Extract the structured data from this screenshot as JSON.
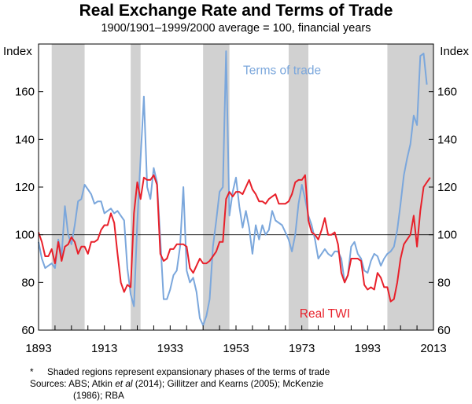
{
  "chart_data": {
    "type": "line",
    "title": "Real Exchange Rate and Terms of Trade",
    "subtitle": "1900/1901–1999/2000 average = 100, financial years",
    "ylabel_left": "Index",
    "ylabel_right": "Index",
    "xlim": [
      1893,
      2013
    ],
    "ylim": [
      60,
      180
    ],
    "x_ticks": [
      1893,
      1913,
      1933,
      1953,
      1973,
      1993,
      2013
    ],
    "y_ticks": [
      60,
      80,
      100,
      120,
      140,
      160
    ],
    "reference_line": 100,
    "shaded_regions": [
      [
        1897,
        1907
      ],
      [
        1921,
        1924
      ],
      [
        1943,
        1951
      ],
      [
        1969,
        1975
      ],
      [
        1999,
        2013
      ]
    ],
    "series": [
      {
        "name": "Terms of trade",
        "color": "#7ba7dc",
        "points": [
          [
            1893,
            97
          ],
          [
            1894,
            90
          ],
          [
            1895,
            86
          ],
          [
            1896,
            87
          ],
          [
            1897,
            88
          ],
          [
            1898,
            86
          ],
          [
            1899,
            98
          ],
          [
            1900,
            91
          ],
          [
            1901,
            112
          ],
          [
            1902,
            100
          ],
          [
            1903,
            96
          ],
          [
            1904,
            104
          ],
          [
            1905,
            114
          ],
          [
            1906,
            115
          ],
          [
            1907,
            121
          ],
          [
            1908,
            119
          ],
          [
            1909,
            117
          ],
          [
            1910,
            113
          ],
          [
            1911,
            114
          ],
          [
            1912,
            114
          ],
          [
            1913,
            109
          ],
          [
            1914,
            110
          ],
          [
            1915,
            111
          ],
          [
            1916,
            109
          ],
          [
            1917,
            110
          ],
          [
            1918,
            108
          ],
          [
            1919,
            106
          ],
          [
            1920,
            86
          ],
          [
            1921,
            75
          ],
          [
            1922,
            70
          ],
          [
            1923,
            105
          ],
          [
            1924,
            132
          ],
          [
            1925,
            158
          ],
          [
            1926,
            120
          ],
          [
            1927,
            115
          ],
          [
            1928,
            128
          ],
          [
            1929,
            122
          ],
          [
            1930,
            98
          ],
          [
            1931,
            73
          ],
          [
            1932,
            73
          ],
          [
            1933,
            77
          ],
          [
            1934,
            83
          ],
          [
            1935,
            85
          ],
          [
            1936,
            95
          ],
          [
            1937,
            120
          ],
          [
            1938,
            85
          ],
          [
            1939,
            80
          ],
          [
            1940,
            82
          ],
          [
            1941,
            76
          ],
          [
            1942,
            65
          ],
          [
            1943,
            62
          ],
          [
            1944,
            66
          ],
          [
            1945,
            73
          ],
          [
            1946,
            95
          ],
          [
            1947,
            106
          ],
          [
            1948,
            118
          ],
          [
            1949,
            120
          ],
          [
            1950,
            177
          ],
          [
            1951,
            108
          ],
          [
            1952,
            118
          ],
          [
            1953,
            124
          ],
          [
            1954,
            112
          ],
          [
            1955,
            103
          ],
          [
            1956,
            110
          ],
          [
            1957,
            103
          ],
          [
            1958,
            92
          ],
          [
            1959,
            104
          ],
          [
            1960,
            98
          ],
          [
            1961,
            104
          ],
          [
            1962,
            100
          ],
          [
            1963,
            102
          ],
          [
            1964,
            110
          ],
          [
            1965,
            106
          ],
          [
            1966,
            105
          ],
          [
            1967,
            104
          ],
          [
            1968,
            101
          ],
          [
            1969,
            98
          ],
          [
            1970,
            93
          ],
          [
            1971,
            100
          ],
          [
            1972,
            113
          ],
          [
            1973,
            121
          ],
          [
            1974,
            115
          ],
          [
            1975,
            108
          ],
          [
            1976,
            104
          ],
          [
            1977,
            98
          ],
          [
            1978,
            90
          ],
          [
            1979,
            92
          ],
          [
            1980,
            94
          ],
          [
            1981,
            92
          ],
          [
            1982,
            91
          ],
          [
            1983,
            93
          ],
          [
            1984,
            93
          ],
          [
            1985,
            90
          ],
          [
            1986,
            80
          ],
          [
            1987,
            83
          ],
          [
            1988,
            95
          ],
          [
            1989,
            97
          ],
          [
            1990,
            92
          ],
          [
            1991,
            90
          ],
          [
            1992,
            85
          ],
          [
            1993,
            84
          ],
          [
            1994,
            89
          ],
          [
            1995,
            92
          ],
          [
            1996,
            91
          ],
          [
            1997,
            87
          ],
          [
            1998,
            90
          ],
          [
            1999,
            92
          ],
          [
            2000,
            93
          ],
          [
            2001,
            95
          ],
          [
            2002,
            102
          ],
          [
            2003,
            113
          ],
          [
            2004,
            125
          ],
          [
            2005,
            132
          ],
          [
            2006,
            138
          ],
          [
            2007,
            150
          ],
          [
            2008,
            146
          ],
          [
            2009,
            175
          ],
          [
            2010,
            176
          ],
          [
            2011,
            163
          ]
        ]
      },
      {
        "name": "Real TWI",
        "color": "#e8202a",
        "points": [
          [
            1893,
            101
          ],
          [
            1894,
            97
          ],
          [
            1895,
            91
          ],
          [
            1896,
            91
          ],
          [
            1897,
            94
          ],
          [
            1898,
            88
          ],
          [
            1899,
            97
          ],
          [
            1900,
            89
          ],
          [
            1901,
            95
          ],
          [
            1902,
            96
          ],
          [
            1903,
            99
          ],
          [
            1904,
            97
          ],
          [
            1905,
            92
          ],
          [
            1906,
            95
          ],
          [
            1907,
            95
          ],
          [
            1908,
            92
          ],
          [
            1909,
            97
          ],
          [
            1910,
            97
          ],
          [
            1911,
            98
          ],
          [
            1912,
            102
          ],
          [
            1913,
            104
          ],
          [
            1914,
            104
          ],
          [
            1915,
            109
          ],
          [
            1916,
            105
          ],
          [
            1917,
            92
          ],
          [
            1918,
            80
          ],
          [
            1919,
            76
          ],
          [
            1920,
            79
          ],
          [
            1921,
            78
          ],
          [
            1922,
            109
          ],
          [
            1923,
            122
          ],
          [
            1924,
            115
          ],
          [
            1925,
            124
          ],
          [
            1926,
            123
          ],
          [
            1927,
            123
          ],
          [
            1928,
            125
          ],
          [
            1929,
            121
          ],
          [
            1930,
            92
          ],
          [
            1931,
            89
          ],
          [
            1932,
            90
          ],
          [
            1933,
            94
          ],
          [
            1934,
            94
          ],
          [
            1935,
            96
          ],
          [
            1936,
            96
          ],
          [
            1937,
            96
          ],
          [
            1938,
            95
          ],
          [
            1939,
            86
          ],
          [
            1940,
            84
          ],
          [
            1941,
            87
          ],
          [
            1942,
            90
          ],
          [
            1943,
            88
          ],
          [
            1944,
            88
          ],
          [
            1945,
            89
          ],
          [
            1946,
            91
          ],
          [
            1947,
            93
          ],
          [
            1948,
            97
          ],
          [
            1949,
            97
          ],
          [
            1950,
            115
          ],
          [
            1951,
            118
          ],
          [
            1952,
            116
          ],
          [
            1953,
            118
          ],
          [
            1954,
            118
          ],
          [
            1955,
            117
          ],
          [
            1956,
            120
          ],
          [
            1957,
            123
          ],
          [
            1958,
            119
          ],
          [
            1959,
            117
          ],
          [
            1960,
            114
          ],
          [
            1961,
            114
          ],
          [
            1962,
            113
          ],
          [
            1963,
            115
          ],
          [
            1964,
            116
          ],
          [
            1965,
            117
          ],
          [
            1966,
            113
          ],
          [
            1967,
            113
          ],
          [
            1968,
            113
          ],
          [
            1969,
            114
          ],
          [
            1970,
            117
          ],
          [
            1971,
            122
          ],
          [
            1972,
            123
          ],
          [
            1973,
            123
          ],
          [
            1974,
            125
          ],
          [
            1975,
            106
          ],
          [
            1976,
            101
          ],
          [
            1977,
            100
          ],
          [
            1978,
            98
          ],
          [
            1979,
            102
          ],
          [
            1980,
            107
          ],
          [
            1981,
            100
          ],
          [
            1982,
            100
          ],
          [
            1983,
            101
          ],
          [
            1984,
            96
          ],
          [
            1985,
            84
          ],
          [
            1986,
            80
          ],
          [
            1987,
            83
          ],
          [
            1988,
            90
          ],
          [
            1989,
            90
          ],
          [
            1990,
            90
          ],
          [
            1991,
            89
          ],
          [
            1992,
            79
          ],
          [
            1993,
            77
          ],
          [
            1994,
            78
          ],
          [
            1995,
            77
          ],
          [
            1996,
            84
          ],
          [
            1997,
            82
          ],
          [
            1998,
            78
          ],
          [
            1999,
            78
          ],
          [
            2000,
            72
          ],
          [
            2001,
            73
          ],
          [
            2002,
            80
          ],
          [
            2003,
            90
          ],
          [
            2004,
            96
          ],
          [
            2005,
            98
          ],
          [
            2006,
            100
          ],
          [
            2007,
            108
          ],
          [
            2008,
            95
          ],
          [
            2009,
            110
          ],
          [
            2010,
            120
          ],
          [
            2011,
            122
          ],
          [
            2012,
            124
          ]
        ]
      }
    ],
    "annotations": [
      {
        "text": "Terms of trade",
        "at": [
          1967,
          169
        ],
        "color": "#7ba7dc"
      },
      {
        "text": "Real TWI",
        "at": [
          1980,
          67
        ],
        "color": "#e8202a"
      }
    ]
  },
  "footnotes": {
    "star": "*",
    "note": "Shaded regions represent expansionary phases of the terms of trade",
    "sources_line1": "Sources: ABS; Atkin ",
    "sources_etal": "et al",
    "sources_line1b": " (2014); Gillitzer and Kearns (2005); McKenzie",
    "sources_line2": "(1986); RBA"
  }
}
